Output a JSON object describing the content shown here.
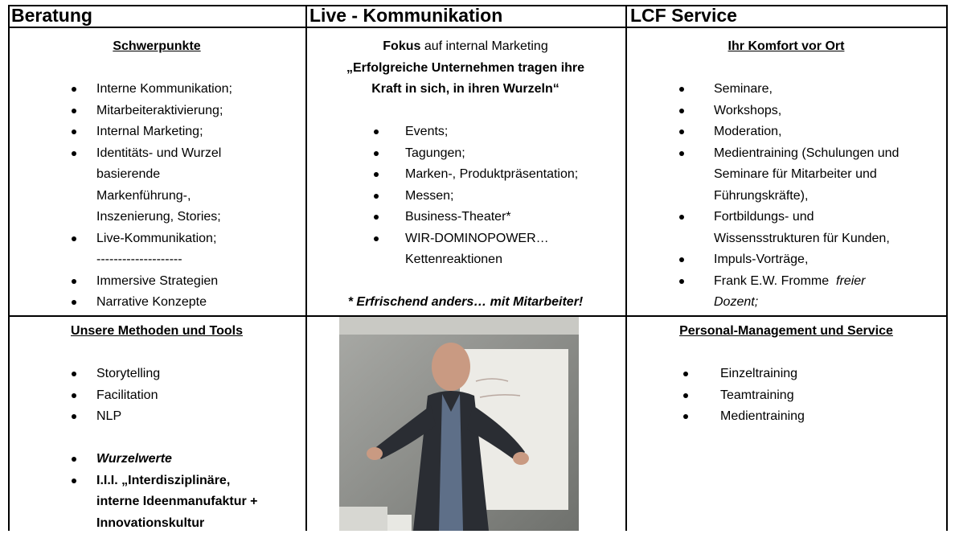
{
  "header": [
    "Beratung",
    "Live - Kommunikation",
    "LCF Service"
  ],
  "row1": {
    "beratung": {
      "title": "Schwerpunkte",
      "items_a": [
        [
          "Interne Kommunikation;"
        ],
        [
          "Mitarbeiteraktivierung;"
        ],
        [
          "Internal Marketing;"
        ],
        [
          "Identitäts- und Wurzel",
          "basierende",
          "Markenführung-,",
          "Inszenierung, Stories;"
        ],
        [
          "Live-Kommunikation;"
        ]
      ],
      "separator": "--------------------",
      "items_b": [
        [
          "Immersive Strategien"
        ],
        [
          "Narrative Konzepte"
        ]
      ]
    },
    "live": {
      "intro": {
        "bold": "Fokus",
        "text": " auf internal Marketing"
      },
      "quote": [
        "„Erfolgreiche Unternehmen tragen ihre",
        "Kraft in sich, in ihren Wurzeln“"
      ],
      "items": [
        [
          "Events;"
        ],
        [
          "Tagungen;"
        ],
        [
          "Marken-, Produktpräsentation;"
        ],
        [
          "Messen;"
        ],
        [
          "Business-Theater*"
        ],
        [
          "WIR-DOMINOPOWER…",
          "Kettenreaktionen"
        ]
      ],
      "footnote": "* Erfrischend anders… mit Mitarbeiter!"
    },
    "service": {
      "title": "Ihr Komfort vor Ort",
      "items": [
        [
          "Seminare,"
        ],
        [
          "Workshops,"
        ],
        [
          "Moderation,"
        ],
        [
          "Medientraining (Schulungen und",
          "Seminare für Mitarbeiter und",
          "Führungskräfte),"
        ],
        [
          "Fortbildungs- und",
          "Wissensstrukturen für Kunden,"
        ],
        [
          "Impuls-Vorträge,"
        ]
      ],
      "last_item": {
        "text": "Frank E.W. Fromme  ",
        "italic": [
          "freier",
          "Dozent;"
        ]
      }
    }
  },
  "row2": {
    "beratung": {
      "title": "Unsere Methoden und Tools",
      "items_a": [
        [
          "Storytelling"
        ],
        [
          "Facilitation"
        ],
        [
          "NLP"
        ]
      ],
      "items_b": [
        [
          "Wurzelwerte"
        ],
        [
          "I.I.I. „Interdisziplinäre,",
          "interne Ideenmanufaktur +",
          "Innovationskultur"
        ]
      ]
    },
    "service": {
      "title": "Personal-Management und Service",
      "items": [
        [
          "Einzeltraining"
        ],
        [
          "Teamtraining"
        ],
        [
          "Medientraining"
        ]
      ]
    }
  }
}
